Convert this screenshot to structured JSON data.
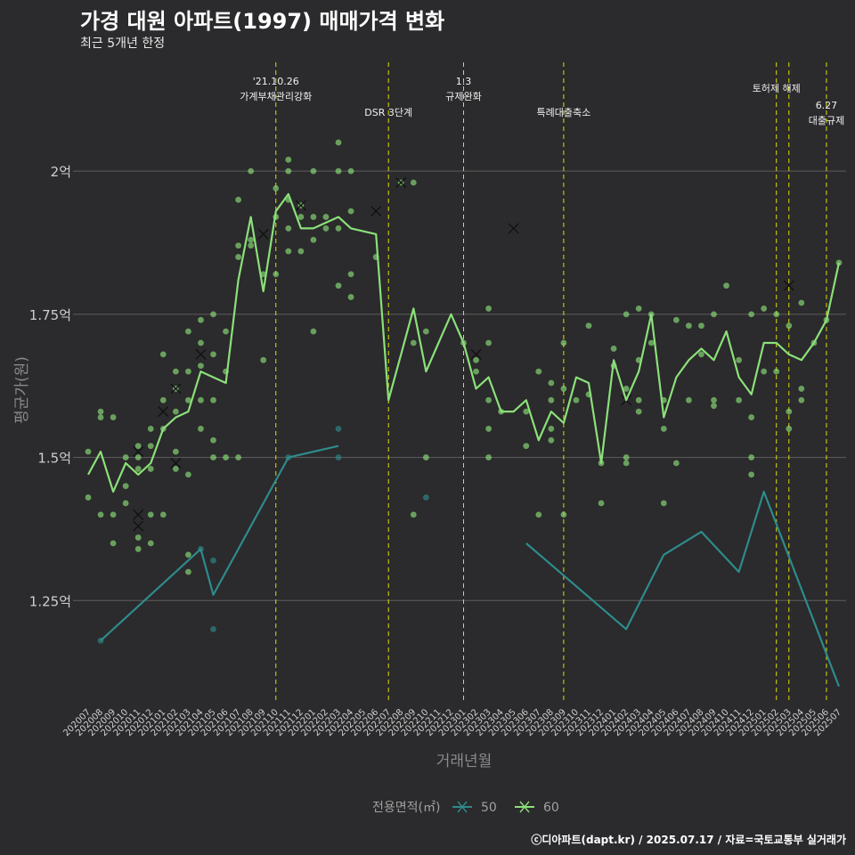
{
  "chart_data": {
    "type": "line",
    "title": "가경 대원 아파트(1997) 매매가격 변화",
    "subtitle": "최근 5개년 한정",
    "xlabel": "거래년월",
    "ylabel": "평균가(원)",
    "caption": "ⓒ디아파트(dapt.kr) / 2025.07.17 / 자료=국토교통부 실거래가",
    "months": [
      "202007",
      "202008",
      "202009",
      "202010",
      "202011",
      "202012",
      "202101",
      "202102",
      "202103",
      "202104",
      "202105",
      "202106",
      "202107",
      "202108",
      "202109",
      "202110",
      "202111",
      "202112",
      "202201",
      "202202",
      "202203",
      "202204",
      "202205",
      "202206",
      "202207",
      "202208",
      "202209",
      "202210",
      "202211",
      "202212",
      "202301",
      "202302",
      "202303",
      "202304",
      "202305",
      "202306",
      "202307",
      "202308",
      "202309",
      "202310",
      "202311",
      "202312",
      "202401",
      "202402",
      "202403",
      "202404",
      "202405",
      "202406",
      "202407",
      "202408",
      "202409",
      "202410",
      "202411",
      "202412",
      "202501",
      "202502",
      "202503",
      "202504",
      "202505",
      "202506",
      "202507"
    ],
    "y_ticks": [
      {
        "value": 1.25,
        "label": "1.25억"
      },
      {
        "value": 1.5,
        "label": "1.5억"
      },
      {
        "value": 1.75,
        "label": "1.75억"
      },
      {
        "value": 2.0,
        "label": "2억"
      }
    ],
    "ylim": [
      1.07,
      2.19
    ],
    "grid": true,
    "legend": {
      "title": "전용면적(㎡)",
      "position": "bottom",
      "items": [
        {
          "name": "50",
          "color": "#2e8b8b"
        },
        {
          "name": "60",
          "color": "#8be07a"
        }
      ]
    },
    "annotations": [
      {
        "month": "202110",
        "lines": [
          "'21.10.26",
          "가계부채관리강화"
        ],
        "style": "dashed"
      },
      {
        "month": "202207",
        "lines": [
          "DSR 3단계"
        ],
        "style": "dashed"
      },
      {
        "month": "202301",
        "lines": [
          "1.3",
          "규제완화"
        ],
        "style": "dashed"
      },
      {
        "month": "202309",
        "lines": [
          "특례대출축소"
        ],
        "style": "dashed"
      },
      {
        "month": "202502",
        "lines": [
          "토허제 해제"
        ],
        "style": "dashed"
      },
      {
        "month": "202503",
        "lines": [],
        "style": "dashed"
      },
      {
        "month": "202506",
        "lines": [
          "6.27",
          "대출규제"
        ],
        "style": "dashed"
      }
    ],
    "series": [
      {
        "name": "60",
        "color": "#8be07a",
        "x": [
          "202007",
          "202008",
          "202009",
          "202010",
          "202011",
          "202012",
          "202101",
          "202102",
          "202103",
          "202104",
          "202105",
          "202106",
          "202107",
          "202108",
          "202109",
          "202110",
          "202111",
          "202112",
          "202201",
          "202202",
          "202203",
          "202204",
          "202206",
          "202207",
          "202208",
          "202209",
          "202210",
          "202211",
          "202212",
          "202301",
          "202302",
          "202303",
          "202304",
          "202305",
          "202306",
          "202307",
          "202308",
          "202309",
          "202310",
          "202311",
          "202312",
          "202401",
          "202402",
          "202403",
          "202404",
          "202405",
          "202406",
          "202407",
          "202408",
          "202409",
          "202410",
          "202411",
          "202412",
          "202501",
          "202502",
          "202503",
          "202504",
          "202505",
          "202506",
          "202507"
        ],
        "values": [
          1.47,
          1.51,
          1.44,
          1.49,
          1.47,
          1.49,
          1.55,
          1.57,
          1.58,
          1.65,
          1.64,
          1.63,
          1.81,
          1.92,
          1.79,
          1.93,
          1.96,
          1.9,
          1.9,
          1.91,
          1.92,
          1.9,
          1.89,
          1.6,
          1.68,
          1.76,
          1.65,
          1.7,
          1.75,
          1.7,
          1.62,
          1.64,
          1.58,
          1.58,
          1.6,
          1.53,
          1.58,
          1.56,
          1.64,
          1.63,
          1.49,
          1.67,
          1.6,
          1.65,
          1.75,
          1.57,
          1.64,
          1.67,
          1.69,
          1.67,
          1.72,
          1.64,
          1.61,
          1.7,
          1.7,
          1.68,
          1.67,
          1.7,
          1.74,
          1.84
        ],
        "points": [
          [
            "202007",
            1.51
          ],
          [
            "202007",
            1.43
          ],
          [
            "202008",
            1.58
          ],
          [
            "202008",
            1.57
          ],
          [
            "202008",
            1.4
          ],
          [
            "202009",
            1.57
          ],
          [
            "202009",
            1.4
          ],
          [
            "202009",
            1.35
          ],
          [
            "202010",
            1.5
          ],
          [
            "202010",
            1.45
          ],
          [
            "202010",
            1.42
          ],
          [
            "202011",
            1.52
          ],
          [
            "202011",
            1.5
          ],
          [
            "202011",
            1.48
          ],
          [
            "202011",
            1.36
          ],
          [
            "202011",
            1.34
          ],
          [
            "202012",
            1.55
          ],
          [
            "202012",
            1.52
          ],
          [
            "202012",
            1.48
          ],
          [
            "202012",
            1.4
          ],
          [
            "202012",
            1.35
          ],
          [
            "202101",
            1.68
          ],
          [
            "202101",
            1.6
          ],
          [
            "202101",
            1.55
          ],
          [
            "202101",
            1.4
          ],
          [
            "202102",
            1.65
          ],
          [
            "202102",
            1.62
          ],
          [
            "202102",
            1.58
          ],
          [
            "202102",
            1.51
          ],
          [
            "202102",
            1.48
          ],
          [
            "202103",
            1.72
          ],
          [
            "202103",
            1.65
          ],
          [
            "202103",
            1.6
          ],
          [
            "202103",
            1.47
          ],
          [
            "202103",
            1.33
          ],
          [
            "202103",
            1.3
          ],
          [
            "202104",
            1.74
          ],
          [
            "202104",
            1.7
          ],
          [
            "202104",
            1.66
          ],
          [
            "202104",
            1.6
          ],
          [
            "202104",
            1.55
          ],
          [
            "202105",
            1.75
          ],
          [
            "202105",
            1.68
          ],
          [
            "202105",
            1.6
          ],
          [
            "202105",
            1.53
          ],
          [
            "202105",
            1.5
          ],
          [
            "202106",
            1.72
          ],
          [
            "202106",
            1.65
          ],
          [
            "202106",
            1.5
          ],
          [
            "202107",
            1.95
          ],
          [
            "202107",
            1.87
          ],
          [
            "202107",
            1.85
          ],
          [
            "202107",
            1.5
          ],
          [
            "202108",
            2.0
          ],
          [
            "202108",
            1.88
          ],
          [
            "202108",
            1.87
          ],
          [
            "202109",
            1.82
          ],
          [
            "202109",
            1.67
          ],
          [
            "202110",
            1.97
          ],
          [
            "202110",
            1.92
          ],
          [
            "202110",
            1.82
          ],
          [
            "202111",
            2.02
          ],
          [
            "202111",
            2.0
          ],
          [
            "202111",
            1.95
          ],
          [
            "202111",
            1.9
          ],
          [
            "202111",
            1.86
          ],
          [
            "202112",
            1.94
          ],
          [
            "202112",
            1.92
          ],
          [
            "202112",
            1.86
          ],
          [
            "202201",
            2.0
          ],
          [
            "202201",
            1.92
          ],
          [
            "202201",
            1.88
          ],
          [
            "202201",
            1.72
          ],
          [
            "202202",
            1.92
          ],
          [
            "202202",
            1.9
          ],
          [
            "202203",
            2.05
          ],
          [
            "202203",
            2.0
          ],
          [
            "202203",
            1.9
          ],
          [
            "202203",
            1.8
          ],
          [
            "202204",
            2.0
          ],
          [
            "202204",
            1.93
          ],
          [
            "202204",
            1.82
          ],
          [
            "202204",
            1.78
          ],
          [
            "202206",
            1.85
          ],
          [
            "202208",
            1.98
          ],
          [
            "202209",
            1.98
          ],
          [
            "202209",
            1.7
          ],
          [
            "202209",
            1.4
          ],
          [
            "202210",
            1.72
          ],
          [
            "202210",
            1.5
          ],
          [
            "202301",
            1.7
          ],
          [
            "202302",
            1.67
          ],
          [
            "202302",
            1.65
          ],
          [
            "202303",
            1.76
          ],
          [
            "202303",
            1.7
          ],
          [
            "202303",
            1.6
          ],
          [
            "202303",
            1.55
          ],
          [
            "202303",
            1.5
          ],
          [
            "202304",
            1.58
          ],
          [
            "202306",
            1.58
          ],
          [
            "202306",
            1.52
          ],
          [
            "202307",
            1.65
          ],
          [
            "202307",
            1.4
          ],
          [
            "202308",
            1.63
          ],
          [
            "202308",
            1.6
          ],
          [
            "202308",
            1.55
          ],
          [
            "202308",
            1.53
          ],
          [
            "202309",
            1.7
          ],
          [
            "202309",
            1.62
          ],
          [
            "202309",
            1.4
          ],
          [
            "202310",
            1.6
          ],
          [
            "202311",
            1.73
          ],
          [
            "202311",
            1.61
          ],
          [
            "202312",
            1.42
          ],
          [
            "202312",
            1.49
          ],
          [
            "202401",
            1.69
          ],
          [
            "202401",
            1.66
          ],
          [
            "202402",
            1.75
          ],
          [
            "202402",
            1.62
          ],
          [
            "202402",
            1.5
          ],
          [
            "202402",
            1.49
          ],
          [
            "202403",
            1.76
          ],
          [
            "202403",
            1.67
          ],
          [
            "202403",
            1.6
          ],
          [
            "202403",
            1.58
          ],
          [
            "202404",
            1.75
          ],
          [
            "202404",
            1.7
          ],
          [
            "202405",
            1.6
          ],
          [
            "202405",
            1.55
          ],
          [
            "202405",
            1.42
          ],
          [
            "202406",
            1.74
          ],
          [
            "202406",
            1.49
          ],
          [
            "202407",
            1.73
          ],
          [
            "202407",
            1.6
          ],
          [
            "202408",
            1.73
          ],
          [
            "202408",
            1.68
          ],
          [
            "202409",
            1.75
          ],
          [
            "202409",
            1.6
          ],
          [
            "202409",
            1.59
          ],
          [
            "202410",
            1.8
          ],
          [
            "202411",
            1.67
          ],
          [
            "202411",
            1.6
          ],
          [
            "202412",
            1.75
          ],
          [
            "202412",
            1.57
          ],
          [
            "202412",
            1.5
          ],
          [
            "202412",
            1.47
          ],
          [
            "202501",
            1.76
          ],
          [
            "202501",
            1.65
          ],
          [
            "202502",
            1.75
          ],
          [
            "202502",
            1.65
          ],
          [
            "202503",
            1.73
          ],
          [
            "202503",
            1.58
          ],
          [
            "202503",
            1.55
          ],
          [
            "202504",
            1.77
          ],
          [
            "202504",
            1.62
          ],
          [
            "202504",
            1.6
          ],
          [
            "202505",
            1.7
          ],
          [
            "202506",
            1.74
          ],
          [
            "202507",
            1.84
          ]
        ],
        "x_markers": [
          [
            "202011",
            1.4
          ],
          [
            "202011",
            1.38
          ],
          [
            "202011",
            1.51
          ],
          [
            "202101",
            1.58
          ],
          [
            "202102",
            1.62
          ],
          [
            "202102",
            1.49
          ],
          [
            "202104",
            1.68
          ],
          [
            "202109",
            1.89
          ],
          [
            "202112",
            1.94
          ],
          [
            "202206",
            1.93
          ],
          [
            "202208",
            1.98
          ],
          [
            "202302",
            1.68
          ],
          [
            "202305",
            1.9
          ],
          [
            "202402",
            1.6
          ],
          [
            "202503",
            1.8
          ]
        ]
      },
      {
        "name": "50",
        "color": "#2e8b8b",
        "x": [
          "202008",
          "202104",
          "202105",
          "202111",
          "202203"
        ],
        "values": [
          1.18,
          1.34,
          1.26,
          1.5,
          1.52
        ],
        "points": [
          [
            "202008",
            1.18
          ],
          [
            "202104",
            1.34
          ],
          [
            "202105",
            1.32
          ],
          [
            "202105",
            1.2
          ],
          [
            "202111",
            1.5
          ],
          [
            "202203",
            1.55
          ],
          [
            "202203",
            1.5
          ],
          [
            "202210",
            1.43
          ]
        ],
        "x_markers": [],
        "segments": [
          {
            "x": [
              "202306",
              "202402",
              "202405",
              "202408",
              "202411",
              "202501",
              "202507"
            ],
            "values": [
              1.35,
              1.2,
              1.33,
              1.37,
              1.3,
              1.44,
              1.1
            ]
          }
        ]
      }
    ]
  }
}
